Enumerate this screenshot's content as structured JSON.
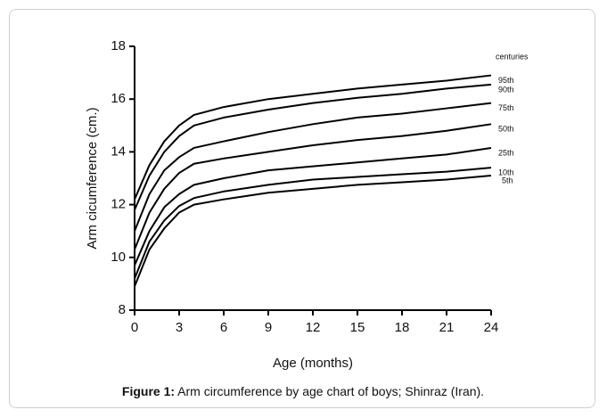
{
  "chart_data": {
    "type": "line",
    "x_label": "Age (months)",
    "y_label": "Arm cicumference (cm.)",
    "annotation": "centuries",
    "caption_label": "Figure 1:",
    "caption": "Arm circumference by age chart of boys; Shinraz (Iran).",
    "x": [
      0,
      1,
      2,
      3,
      4,
      6,
      9,
      12,
      15,
      18,
      21,
      24
    ],
    "xlim": [
      0,
      24
    ],
    "xticks": [
      0,
      3,
      6,
      9,
      12,
      15,
      18,
      21,
      24
    ],
    "ylim": [
      8,
      18
    ],
    "yticks": [
      8,
      10,
      12,
      14,
      16,
      18
    ],
    "series": [
      {
        "name": "95th",
        "color": "#000000",
        "values": [
          12.2,
          13.5,
          14.4,
          15.0,
          15.4,
          15.7,
          16.0,
          16.2,
          16.4,
          16.55,
          16.7,
          16.9
        ]
      },
      {
        "name": "90th",
        "color": "#000000",
        "values": [
          11.8,
          13.1,
          14.0,
          14.6,
          15.0,
          15.3,
          15.6,
          15.85,
          16.05,
          16.2,
          16.4,
          16.55
        ]
      },
      {
        "name": "75th",
        "color": "#000000",
        "values": [
          11.0,
          12.4,
          13.3,
          13.8,
          14.15,
          14.4,
          14.75,
          15.05,
          15.3,
          15.45,
          15.65,
          15.85
        ]
      },
      {
        "name": "50th",
        "color": "#000000",
        "values": [
          10.3,
          11.7,
          12.6,
          13.2,
          13.55,
          13.75,
          14.0,
          14.25,
          14.45,
          14.6,
          14.8,
          15.05
        ]
      },
      {
        "name": "25th",
        "color": "#000000",
        "values": [
          9.7,
          11.0,
          11.9,
          12.4,
          12.75,
          13.0,
          13.3,
          13.45,
          13.6,
          13.75,
          13.9,
          14.15
        ]
      },
      {
        "name": "10th",
        "color": "#000000",
        "values": [
          9.2,
          10.6,
          11.4,
          11.95,
          12.25,
          12.5,
          12.75,
          12.95,
          13.05,
          13.15,
          13.25,
          13.4
        ]
      },
      {
        "name": "5th",
        "color": "#000000",
        "values": [
          8.9,
          10.3,
          11.1,
          11.7,
          12.0,
          12.2,
          12.45,
          12.6,
          12.75,
          12.85,
          12.95,
          13.1
        ]
      }
    ]
  }
}
